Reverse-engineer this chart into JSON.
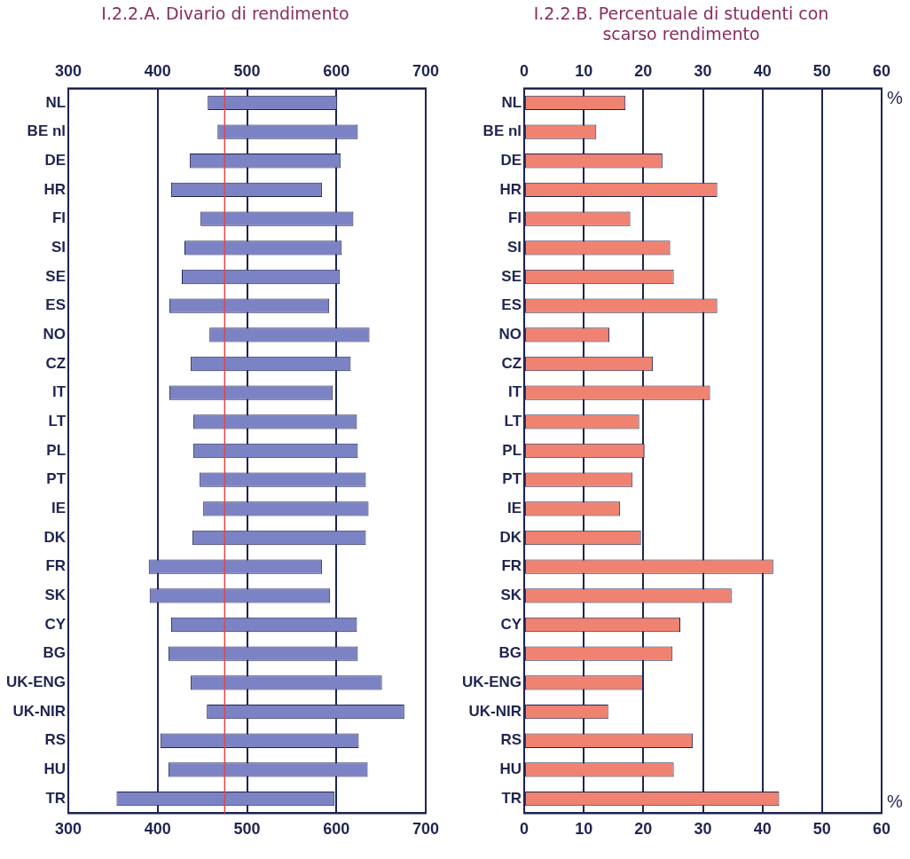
{
  "chart_data": [
    {
      "type": "bar",
      "orientation": "horizontal",
      "title": "I.2.2.A. Divario di rendimento",
      "categories": [
        "NL",
        "BE nl",
        "DE",
        "HR",
        "FI",
        "SI",
        "SE",
        "ES",
        "NO",
        "CZ",
        "IT",
        "LT",
        "PL",
        "PT",
        "IE",
        "DK",
        "FR",
        "SK",
        "CY",
        "BG",
        "UK-ENG",
        "UK-NIR",
        "RS",
        "HU",
        "TR"
      ],
      "base": [
        456,
        467,
        436,
        415,
        448,
        430,
        427,
        413,
        458,
        437,
        413,
        440,
        440,
        447,
        451,
        439,
        390,
        391,
        415,
        412,
        437,
        455,
        403,
        412,
        354
      ],
      "values": [
        145,
        157,
        169,
        169,
        171,
        176,
        177,
        179,
        179,
        179,
        183,
        183,
        184,
        186,
        185,
        194,
        194,
        202,
        208,
        212,
        214,
        221,
        222,
        223,
        244
      ],
      "color": "#7b83c4",
      "xlim": [
        300,
        700
      ],
      "xticks": [
        300,
        400,
        500,
        600,
        700
      ],
      "x2lim": [
        300,
        700
      ],
      "x2ticks": [
        300,
        400,
        500,
        600,
        700
      ],
      "grid": "x",
      "ref_lines": [
        {
          "axis": "x",
          "value": 475,
          "color": "#e0474c"
        }
      ]
    },
    {
      "type": "bar",
      "orientation": "horizontal",
      "title": "I.2.2.B. Percentuale di studenti con scarso rendimento",
      "categories": [
        "NL",
        "BE nl",
        "DE",
        "HR",
        "FI",
        "SI",
        "SE",
        "ES",
        "NO",
        "CZ",
        "IT",
        "LT",
        "PL",
        "PT",
        "IE",
        "DK",
        "FR",
        "SK",
        "CY",
        "BG",
        "UK-ENG",
        "UK-NIR",
        "RS",
        "HU",
        "TR"
      ],
      "values": [
        17.0,
        12.1,
        23.2,
        32.4,
        17.8,
        24.5,
        25.1,
        32.4,
        14.3,
        21.6,
        31.2,
        19.3,
        20.2,
        18.2,
        16.1,
        19.6,
        41.8,
        34.8,
        26.2,
        24.9,
        19.9,
        14.1,
        28.3,
        25.1,
        42.8
      ],
      "color": "#ef8270",
      "xlim": [
        0,
        60
      ],
      "xticks": [
        0,
        10,
        20,
        30,
        40,
        50,
        60
      ],
      "x2lim": [
        0,
        60
      ],
      "x2ticks": [
        0,
        10,
        20,
        30,
        40,
        50,
        60
      ],
      "xlabel": "%",
      "x2label": "%",
      "grid": "x"
    }
  ]
}
